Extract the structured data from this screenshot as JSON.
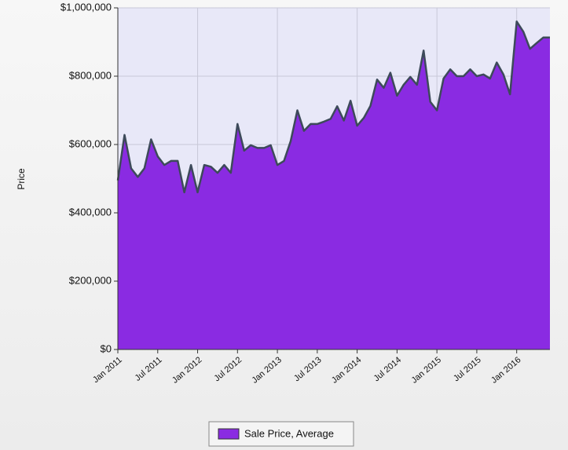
{
  "chart_data": {
    "type": "area",
    "y_label": "Price",
    "categories": [
      "Jan 2011",
      null,
      null,
      null,
      null,
      null,
      "Jul 2011",
      null,
      null,
      null,
      null,
      null,
      "Jan 2012",
      null,
      null,
      null,
      null,
      null,
      "Jul 2012",
      null,
      null,
      null,
      null,
      null,
      "Jan 2013",
      null,
      null,
      null,
      null,
      null,
      "Jul 2013",
      null,
      null,
      null,
      null,
      null,
      "Jan 2014",
      null,
      null,
      null,
      null,
      null,
      "Jul 2014",
      null,
      null,
      null,
      null,
      null,
      "Jan 2015",
      null,
      null,
      null,
      null,
      null,
      "Jul 2015",
      null,
      null,
      null,
      null,
      null,
      "Jan 2016",
      null,
      null,
      null,
      null,
      null
    ],
    "series": [
      {
        "name": "Sale Price, Average",
        "color": "#8a2be2",
        "values": [
          495000,
          628000,
          530000,
          505000,
          530000,
          615000,
          565000,
          540000,
          552000,
          552000,
          460000,
          540000,
          460000,
          540000,
          535000,
          517000,
          540000,
          517000,
          660000,
          582000,
          598000,
          590000,
          590000,
          598000,
          540000,
          552000,
          610000,
          700000,
          640000,
          660000,
          660000,
          667000,
          675000,
          712000,
          670000,
          728000,
          655000,
          678000,
          713000,
          790000,
          766000,
          810000,
          743000,
          775000,
          798000,
          775000,
          875000,
          725000,
          700000,
          793000,
          820000,
          800000,
          800000,
          820000,
          800000,
          805000,
          793000,
          840000,
          805000,
          747000,
          960000,
          930000,
          880000,
          897000,
          913000,
          913000
        ]
      }
    ],
    "ylim": [
      0,
      1000000
    ],
    "yticks": [
      {
        "value": 0,
        "label": "$0"
      },
      {
        "value": 200000,
        "label": "$200,000"
      },
      {
        "value": 400000,
        "label": "$400,000"
      },
      {
        "value": 600000,
        "label": "$600,000"
      },
      {
        "value": 800000,
        "label": "$800,000"
      },
      {
        "value": 1000000,
        "label": "$1,000,000"
      }
    ],
    "grid": true
  }
}
